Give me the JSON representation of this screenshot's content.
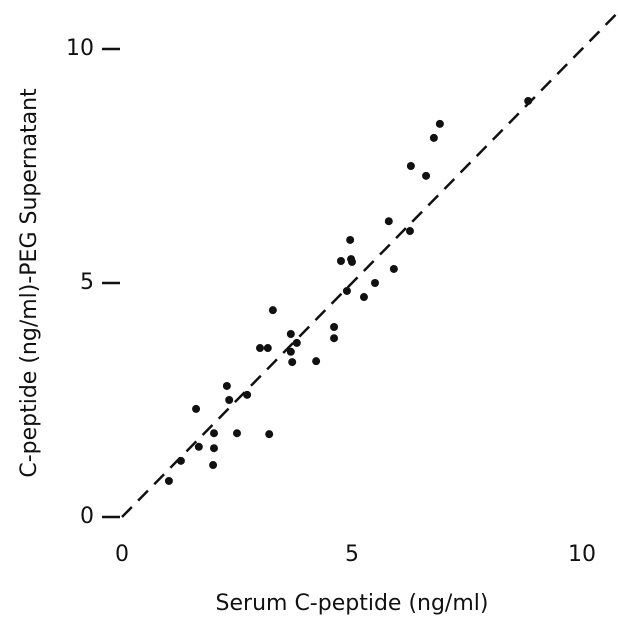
{
  "chart_data": {
    "type": "scatter",
    "xlabel": "Serum C-peptide (ng/ml)",
    "ylabel": "C-peptide (ng/ml)-PEG Supernatant",
    "color": "#111111",
    "xlim": [
      0,
      10
    ],
    "ylim": [
      0,
      10
    ],
    "xticks": [
      0,
      5,
      10
    ],
    "yticks": [
      0,
      5,
      10
    ],
    "x": [
      1.02,
      1.28,
      1.61,
      1.67,
      2.0,
      2.0,
      1.98,
      2.28,
      2.33,
      2.5,
      2.72,
      3.0,
      3.17,
      3.2,
      3.28,
      3.67,
      3.67,
      3.7,
      3.8,
      4.22,
      4.61,
      4.61,
      4.76,
      4.89,
      4.96,
      4.98,
      5.0,
      5.26,
      5.5,
      5.8,
      5.91,
      6.26,
      6.28,
      6.61,
      6.78,
      6.91,
      8.83
    ],
    "values": [
      0.77,
      1.2,
      2.31,
      1.5,
      1.79,
      1.47,
      1.11,
      2.8,
      2.5,
      1.79,
      2.61,
      3.61,
      3.61,
      1.77,
      4.42,
      3.91,
      3.53,
      3.31,
      3.72,
      3.33,
      4.06,
      3.82,
      5.47,
      4.83,
      5.92,
      5.51,
      5.45,
      4.7,
      5.0,
      6.32,
      5.3,
      6.11,
      7.5,
      7.29,
      8.1,
      8.4,
      8.89
    ]
  }
}
